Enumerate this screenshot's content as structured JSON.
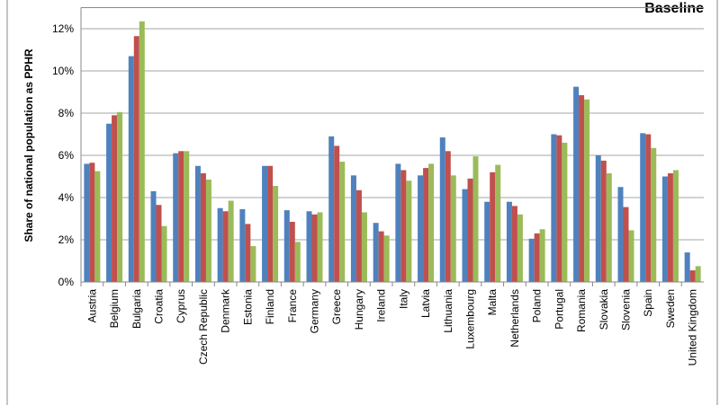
{
  "chart_data": {
    "type": "bar",
    "title": "Baseline",
    "y_label": "Share of national population as PPHR",
    "categories": [
      "Austria",
      "Belgium",
      "Bulgaria",
      "Croatia",
      "Cyprus",
      "Czech Republic",
      "Denmark",
      "Estonia",
      "Finland",
      "France",
      "Germany",
      "Greece",
      "Hungary",
      "Ireland",
      "Italy",
      "Latvia",
      "Lithuania",
      "Luxembourg",
      "Malta",
      "Netherlands",
      "Poland",
      "Portugal",
      "Romania",
      "Slovakia",
      "Slovenia",
      "Spain",
      "Sweden",
      "United Kingdom"
    ],
    "series": [
      {
        "color": "#4f81bd",
        "values": [
          5.6,
          7.5,
          10.7,
          4.3,
          6.1,
          5.5,
          3.5,
          3.45,
          5.5,
          3.4,
          3.35,
          6.9,
          5.05,
          2.8,
          5.6,
          5.05,
          6.85,
          4.4,
          3.8,
          3.8,
          2.05,
          7.0,
          9.25,
          6.0,
          4.5,
          7.05,
          5.0,
          1.4
        ]
      },
      {
        "color": "#c0504d",
        "values": [
          5.65,
          7.9,
          11.65,
          3.65,
          6.2,
          5.15,
          3.35,
          2.75,
          5.5,
          2.85,
          3.2,
          6.45,
          4.35,
          2.4,
          5.3,
          5.4,
          6.2,
          4.9,
          5.2,
          3.6,
          2.3,
          6.95,
          8.85,
          5.75,
          3.55,
          7.0,
          5.15,
          0.55
        ]
      },
      {
        "color": "#9bbb59",
        "values": [
          5.25,
          8.05,
          12.35,
          2.65,
          6.2,
          4.85,
          3.85,
          1.7,
          4.55,
          1.9,
          3.3,
          5.7,
          3.3,
          2.2,
          4.8,
          5.6,
          5.05,
          5.95,
          5.55,
          3.2,
          2.5,
          6.6,
          8.65,
          5.15,
          2.45,
          6.35,
          5.3,
          0.75
        ]
      }
    ],
    "ylim": [
      0,
      13
    ],
    "yticks": [
      {
        "value": 0,
        "label": "0%"
      },
      {
        "value": 2,
        "label": "2%"
      },
      {
        "value": 4,
        "label": "4%"
      },
      {
        "value": 6,
        "label": "6%"
      },
      {
        "value": 8,
        "label": "8%"
      },
      {
        "value": 10,
        "label": "10%"
      },
      {
        "value": 12,
        "label": "12%"
      }
    ],
    "grid": true
  }
}
